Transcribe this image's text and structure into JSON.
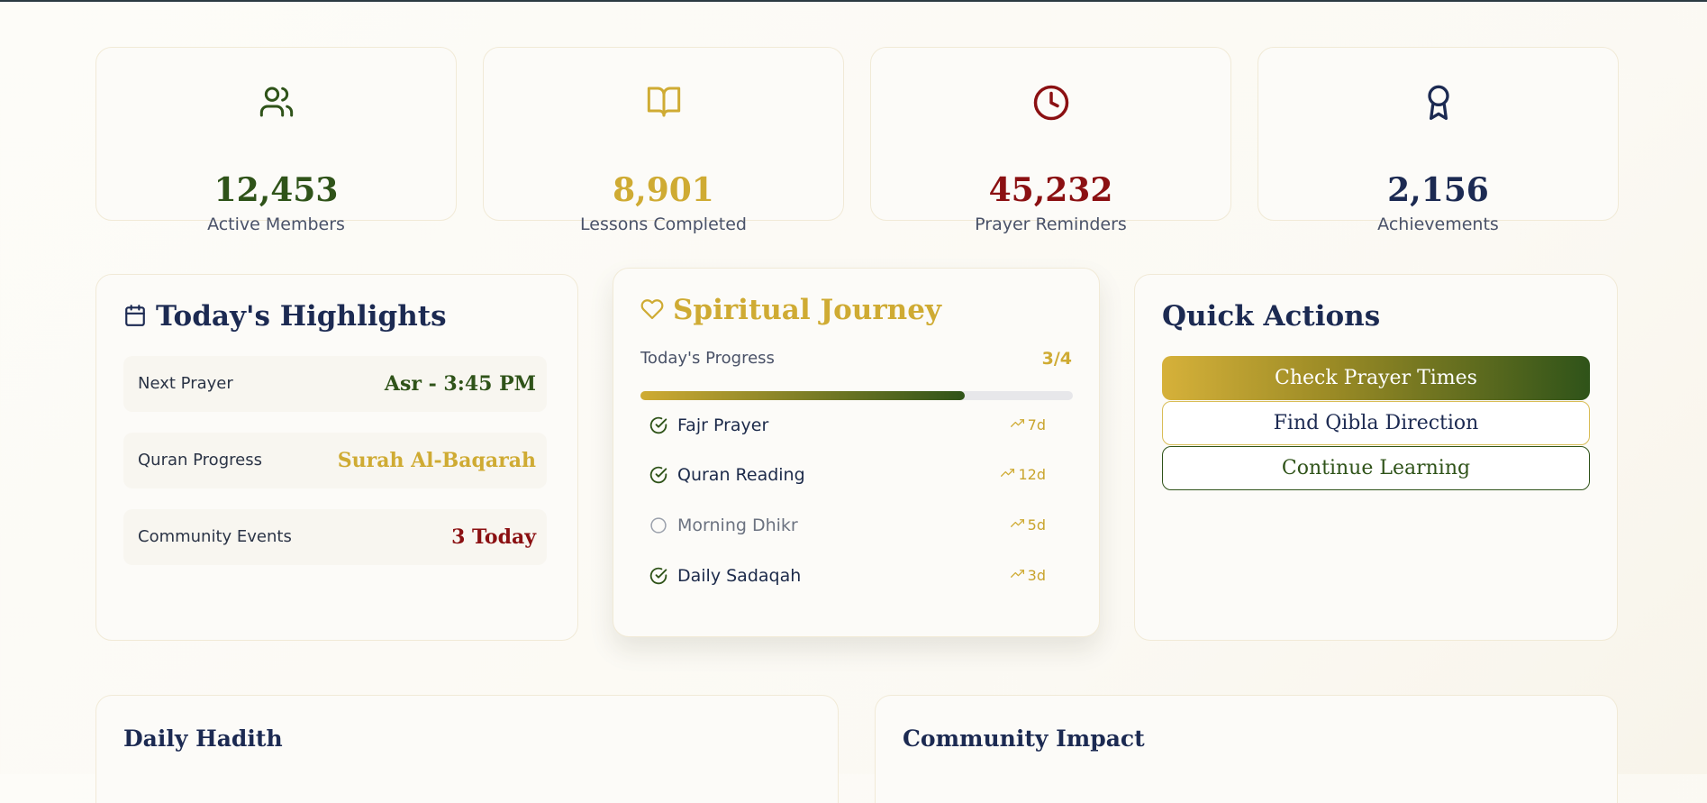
{
  "colors": {
    "green": "#2f5319",
    "gold": "#cfab33",
    "red": "#8b1012",
    "navy": "#1c2a52"
  },
  "stats": [
    {
      "icon": "users-icon",
      "value": "12,453",
      "label": "Active Members",
      "color": "#2f5319"
    },
    {
      "icon": "book-open-icon",
      "value": "8,901",
      "label": "Lessons Completed",
      "color": "#cfab33"
    },
    {
      "icon": "clock-icon",
      "value": "45,232",
      "label": "Prayer Reminders",
      "color": "#8b1012"
    },
    {
      "icon": "award-icon",
      "value": "2,156",
      "label": "Achievements",
      "color": "#1c2a52"
    }
  ],
  "highlights": {
    "title": "Today's Highlights",
    "icon": "calendar-icon",
    "rows": [
      {
        "label": "Next Prayer",
        "value": "Asr - 3:45 PM",
        "color": "#2f5319"
      },
      {
        "label": "Quran Progress",
        "value": "Surah Al-Baqarah",
        "color": "#cfab33"
      },
      {
        "label": "Community Events",
        "value": "3 Today",
        "color": "#8b1012"
      }
    ]
  },
  "journey": {
    "title": "Spiritual Journey",
    "icon": "heart-icon",
    "progress_label": "Today's Progress",
    "progress_text": "3/4",
    "progress_fraction": 0.75,
    "tasks": [
      {
        "name": "Fajr Prayer",
        "done": true,
        "streak": "7d"
      },
      {
        "name": "Quran Reading",
        "done": true,
        "streak": "12d"
      },
      {
        "name": "Morning Dhikr",
        "done": false,
        "streak": "5d"
      },
      {
        "name": "Daily Sadaqah",
        "done": true,
        "streak": "3d"
      }
    ]
  },
  "quick_actions": {
    "title": "Quick Actions",
    "buttons": [
      "Check Prayer Times",
      "Find Qibla Direction",
      "Continue Learning"
    ]
  },
  "daily_hadith": {
    "title": "Daily Hadith"
  },
  "community_impact": {
    "title": "Community Impact"
  }
}
